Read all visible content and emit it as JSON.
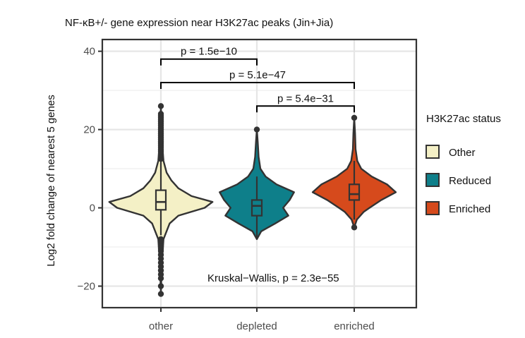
{
  "chart_data": {
    "type": "violin",
    "title": "NF-κB+/- gene expression near H3K27ac peaks (Jin+Jia)",
    "xlabel": "",
    "ylabel": "Log2 fold change of nearest 5 genes",
    "ylim": [
      -25.5,
      43
    ],
    "yticks": [
      -20,
      0,
      20,
      40
    ],
    "ytick_labels": [
      "−20",
      "0",
      "20",
      "40"
    ],
    "categories": [
      "other",
      "depleted",
      "enriched"
    ],
    "grid": true,
    "legend": {
      "title": "H3K27ac status",
      "position": "right",
      "entries": [
        {
          "label": "Other",
          "color": "#f4f0c6"
        },
        {
          "label": "Reduced",
          "color": "#0e7f8a"
        },
        {
          "label": "Enriched",
          "color": "#d64a1c"
        }
      ]
    },
    "groups": [
      {
        "category": "other",
        "color": "#f4f0c6",
        "box": {
          "q1": -0.5,
          "median": 1.5,
          "q3": 4.5,
          "whisker_low": -7,
          "whisker_high": 12
        },
        "violin": [
          [
            -22,
            0
          ],
          [
            -15,
            0.02
          ],
          [
            -8,
            0.06
          ],
          [
            -4,
            0.2
          ],
          [
            -2,
            0.4
          ],
          [
            0,
            1
          ],
          [
            1.5,
            1.18
          ],
          [
            3,
            0.7
          ],
          [
            5,
            0.4
          ],
          [
            7,
            0.24
          ],
          [
            9,
            0.13
          ],
          [
            12,
            0.06
          ],
          [
            16,
            0.03
          ],
          [
            20,
            0.02
          ],
          [
            26,
            0
          ]
        ],
        "outliers": [
          -22,
          -20,
          -18,
          -17,
          -16,
          -15,
          -14,
          -13,
          -12,
          -11,
          -10.5,
          -10,
          -9.5,
          -9,
          -8.5,
          -8,
          12.5,
          13,
          13.5,
          14,
          14.5,
          15,
          15.5,
          16,
          16.5,
          17,
          17.5,
          18,
          18.5,
          19,
          19.5,
          20,
          20.5,
          21,
          21.5,
          22,
          22.5,
          23,
          23.5,
          24,
          26
        ]
      },
      {
        "category": "depleted",
        "color": "#0e7f8a",
        "box": {
          "q1": -2,
          "median": 0.5,
          "q3": 2,
          "whisker_low": -8,
          "whisker_high": 8
        },
        "violin": [
          [
            -8,
            0
          ],
          [
            -6,
            0.1
          ],
          [
            -4,
            0.42
          ],
          [
            -2,
            0.72
          ],
          [
            0,
            0.6
          ],
          [
            2,
            0.75
          ],
          [
            4,
            0.85
          ],
          [
            6,
            0.45
          ],
          [
            8,
            0.2
          ],
          [
            10,
            0.08
          ],
          [
            13,
            0.04
          ],
          [
            17,
            0.02
          ],
          [
            20,
            0
          ]
        ],
        "outliers": [
          20
        ]
      },
      {
        "category": "enriched",
        "color": "#d64a1c",
        "box": {
          "q1": 2,
          "median": 3.5,
          "q3": 6,
          "whisker_low": -3,
          "whisker_high": 12
        },
        "violin": [
          [
            -5,
            0
          ],
          [
            -3,
            0.06
          ],
          [
            -1,
            0.22
          ],
          [
            0,
            0.35
          ],
          [
            2,
            0.62
          ],
          [
            4,
            0.95
          ],
          [
            6,
            0.75
          ],
          [
            8,
            0.4
          ],
          [
            10,
            0.16
          ],
          [
            12,
            0.07
          ],
          [
            15,
            0.03
          ],
          [
            19,
            0.02
          ],
          [
            23,
            0
          ]
        ],
        "outliers": [
          -5,
          23
        ]
      }
    ],
    "comparisons": [
      {
        "groups": [
          "other",
          "depleted"
        ],
        "label": "p = 1.5e−10",
        "y": 38
      },
      {
        "groups": [
          "other",
          "enriched"
        ],
        "label": "p = 5.1e−47",
        "y": 32
      },
      {
        "groups": [
          "depleted",
          "enriched"
        ],
        "label": "p = 5.4e−31",
        "y": 26
      }
    ],
    "annotation": "Kruskal−Wallis, p = 2.3e−55"
  }
}
